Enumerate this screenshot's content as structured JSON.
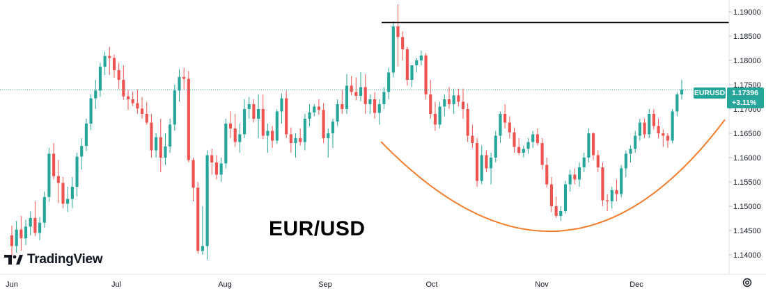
{
  "chart_data": {
    "type": "candlestick",
    "symbol": "EURUSD",
    "last_price": "1.17396",
    "change": "+3.11%",
    "watermark": "EUR/USD",
    "x_tick_labels": [
      "Jun",
      "Jul",
      "Aug",
      "Sep",
      "Oct",
      "Nov",
      "Dec"
    ],
    "y_tick_labels": [
      "1.14000",
      "1.14500",
      "1.15000",
      "1.15500",
      "1.16000",
      "1.16500",
      "1.17000",
      "1.17500",
      "1.18000",
      "1.18500",
      "1.19000"
    ],
    "ylim": [
      1.1373,
      1.1922
    ],
    "resistance_level": 1.1878,
    "colors": {
      "up": "#26a69a",
      "down": "#ef5350",
      "resistance": "#000000",
      "cup": "#f57c2a",
      "badge": "#26a69a"
    },
    "cup_curve": [
      [
        1.1633,
        0
      ],
      [
        1.1449,
        0.5
      ],
      [
        1.1678,
        1
      ]
    ],
    "candles": [
      [
        1.144,
        1.146,
        1.1398,
        1.1418
      ],
      [
        1.1418,
        1.147,
        1.1404,
        1.1452
      ],
      [
        1.1452,
        1.148,
        1.1408,
        1.1434
      ],
      [
        1.1434,
        1.1472,
        1.142,
        1.1458
      ],
      [
        1.1458,
        1.1489,
        1.144,
        1.1476
      ],
      [
        1.1476,
        1.151,
        1.1438,
        1.1445
      ],
      [
        1.1445,
        1.1478,
        1.143,
        1.1466
      ],
      [
        1.1466,
        1.153,
        1.1456,
        1.1519
      ],
      [
        1.1519,
        1.162,
        1.1509,
        1.1608
      ],
      [
        1.1608,
        1.163,
        1.1555,
        1.1562
      ],
      [
        1.1562,
        1.1595,
        1.1506,
        1.1548
      ],
      [
        1.1548,
        1.156,
        1.1496,
        1.1505
      ],
      [
        1.1505,
        1.154,
        1.1488,
        1.1515
      ],
      [
        1.1515,
        1.156,
        1.1496,
        1.154
      ],
      [
        1.154,
        1.161,
        1.152,
        1.1602
      ],
      [
        1.1602,
        1.164,
        1.1575,
        1.1624
      ],
      [
        1.1624,
        1.168,
        1.1614,
        1.167
      ],
      [
        1.167,
        1.173,
        1.1657,
        1.1722
      ],
      [
        1.1722,
        1.176,
        1.17,
        1.1738
      ],
      [
        1.1738,
        1.1795,
        1.1725,
        1.1787
      ],
      [
        1.1787,
        1.1818,
        1.177,
        1.1809
      ],
      [
        1.1809,
        1.1828,
        1.177,
        1.1805
      ],
      [
        1.1805,
        1.1812,
        1.1764,
        1.178
      ],
      [
        1.178,
        1.1795,
        1.1742,
        1.176
      ],
      [
        1.176,
        1.179,
        1.1719,
        1.1726
      ],
      [
        1.1726,
        1.174,
        1.1698,
        1.172
      ],
      [
        1.172,
        1.1736,
        1.1706,
        1.1712
      ],
      [
        1.1712,
        1.174,
        1.169,
        1.1701
      ],
      [
        1.1701,
        1.1725,
        1.168,
        1.169
      ],
      [
        1.169,
        1.1715,
        1.1668,
        1.1672
      ],
      [
        1.1672,
        1.169,
        1.16,
        1.1615
      ],
      [
        1.1615,
        1.165,
        1.16,
        1.1642
      ],
      [
        1.1642,
        1.168,
        1.157,
        1.16
      ],
      [
        1.16,
        1.165,
        1.1585,
        1.1623
      ],
      [
        1.1623,
        1.168,
        1.161,
        1.1668
      ],
      [
        1.1668,
        1.175,
        1.1655,
        1.1738
      ],
      [
        1.1738,
        1.1782,
        1.1715,
        1.1766
      ],
      [
        1.1766,
        1.1785,
        1.174,
        1.1762
      ],
      [
        1.1762,
        1.1778,
        1.159,
        1.1595
      ],
      [
        1.1595,
        1.16,
        1.151,
        1.1538
      ],
      [
        1.1538,
        1.155,
        1.1402,
        1.1408
      ],
      [
        1.1408,
        1.15,
        1.14,
        1.1418
      ],
      [
        1.1418,
        1.1615,
        1.139,
        1.1605
      ],
      [
        1.1605,
        1.1618,
        1.1565,
        1.159
      ],
      [
        1.159,
        1.1605,
        1.1555,
        1.1565
      ],
      [
        1.1565,
        1.16,
        1.155,
        1.1588
      ],
      [
        1.1588,
        1.168,
        1.1578,
        1.167
      ],
      [
        1.167,
        1.1695,
        1.164,
        1.166
      ],
      [
        1.166,
        1.169,
        1.1622,
        1.1632
      ],
      [
        1.1632,
        1.167,
        1.161,
        1.1648
      ],
      [
        1.1648,
        1.172,
        1.164,
        1.17
      ],
      [
        1.17,
        1.1725,
        1.168,
        1.171
      ],
      [
        1.171,
        1.172,
        1.1672,
        1.168
      ],
      [
        1.168,
        1.173,
        1.164,
        1.17
      ],
      [
        1.17,
        1.173,
        1.1638,
        1.1645
      ],
      [
        1.1645,
        1.167,
        1.161,
        1.1655
      ],
      [
        1.1655,
        1.1665,
        1.162,
        1.1635
      ],
      [
        1.1635,
        1.17,
        1.1628,
        1.1695
      ],
      [
        1.1695,
        1.1732,
        1.167,
        1.1722
      ],
      [
        1.1722,
        1.1738,
        1.164,
        1.1648
      ],
      [
        1.1648,
        1.1662,
        1.161,
        1.163
      ],
      [
        1.163,
        1.165,
        1.16,
        1.164
      ],
      [
        1.164,
        1.166,
        1.1625,
        1.1632
      ],
      [
        1.1632,
        1.169,
        1.1615,
        1.168
      ],
      [
        1.168,
        1.171,
        1.1665,
        1.1693
      ],
      [
        1.1693,
        1.171,
        1.1685,
        1.1705
      ],
      [
        1.1705,
        1.172,
        1.1688,
        1.1698
      ],
      [
        1.1698,
        1.1712,
        1.163,
        1.164
      ],
      [
        1.164,
        1.166,
        1.16,
        1.165
      ],
      [
        1.165,
        1.168,
        1.162,
        1.1674
      ],
      [
        1.1674,
        1.172,
        1.1665,
        1.171
      ],
      [
        1.171,
        1.174,
        1.169,
        1.17
      ],
      [
        1.17,
        1.1772,
        1.169,
        1.1748
      ],
      [
        1.1748,
        1.1768,
        1.1728,
        1.1735
      ],
      [
        1.1735,
        1.1765,
        1.1718,
        1.1727
      ],
      [
        1.1727,
        1.1776,
        1.1716,
        1.1745
      ],
      [
        1.1745,
        1.1772,
        1.169,
        1.171
      ],
      [
        1.171,
        1.173,
        1.169,
        1.172
      ],
      [
        1.172,
        1.1735,
        1.168,
        1.1692
      ],
      [
        1.1692,
        1.172,
        1.1668,
        1.171
      ],
      [
        1.171,
        1.1745,
        1.17,
        1.1735
      ],
      [
        1.1735,
        1.1785,
        1.172,
        1.1775
      ],
      [
        1.1775,
        1.188,
        1.1765,
        1.187
      ],
      [
        1.187,
        1.1915,
        1.1788,
        1.1848
      ],
      [
        1.1848,
        1.186,
        1.18,
        1.1823
      ],
      [
        1.1823,
        1.1828,
        1.1748,
        1.176
      ],
      [
        1.176,
        1.179,
        1.1745,
        1.179
      ],
      [
        1.179,
        1.1805,
        1.1775,
        1.18
      ],
      [
        1.18,
        1.182,
        1.179,
        1.181
      ],
      [
        1.181,
        1.1815,
        1.172,
        1.173
      ],
      [
        1.173,
        1.176,
        1.168,
        1.169
      ],
      [
        1.169,
        1.1715,
        1.1655,
        1.1668
      ],
      [
        1.1668,
        1.1715,
        1.166,
        1.1705
      ],
      [
        1.1705,
        1.173,
        1.1685,
        1.172
      ],
      [
        1.172,
        1.1745,
        1.17,
        1.171
      ],
      [
        1.171,
        1.1742,
        1.169,
        1.1728
      ],
      [
        1.1728,
        1.1742,
        1.1705,
        1.1715
      ],
      [
        1.1715,
        1.1742,
        1.168,
        1.17
      ],
      [
        1.17,
        1.1712,
        1.1632,
        1.1645
      ],
      [
        1.1645,
        1.1668,
        1.162,
        1.163
      ],
      [
        1.163,
        1.164,
        1.154,
        1.1552
      ],
      [
        1.1552,
        1.1625,
        1.1545,
        1.1605
      ],
      [
        1.1605,
        1.1615,
        1.157,
        1.1578
      ],
      [
        1.1578,
        1.161,
        1.1545,
        1.16
      ],
      [
        1.16,
        1.1655,
        1.159,
        1.1645
      ],
      [
        1.1645,
        1.1695,
        1.163,
        1.169
      ],
      [
        1.169,
        1.171,
        1.166,
        1.1672
      ],
      [
        1.1672,
        1.1685,
        1.164,
        1.1652
      ],
      [
        1.1652,
        1.1662,
        1.161,
        1.1622
      ],
      [
        1.1622,
        1.164,
        1.1605,
        1.161
      ],
      [
        1.161,
        1.1625,
        1.16,
        1.1618
      ],
      [
        1.1618,
        1.164,
        1.1608,
        1.1632
      ],
      [
        1.1632,
        1.1655,
        1.162,
        1.1648
      ],
      [
        1.1648,
        1.166,
        1.1625,
        1.163
      ],
      [
        1.163,
        1.164,
        1.1575,
        1.1585
      ],
      [
        1.1585,
        1.16,
        1.1538,
        1.1545
      ],
      [
        1.1545,
        1.156,
        1.1488,
        1.15
      ],
      [
        1.15,
        1.152,
        1.1476,
        1.148
      ],
      [
        1.148,
        1.15,
        1.147,
        1.149
      ],
      [
        1.149,
        1.1552,
        1.1485,
        1.1545
      ],
      [
        1.1545,
        1.1575,
        1.153,
        1.1565
      ],
      [
        1.1565,
        1.1578,
        1.1545,
        1.1555
      ],
      [
        1.1555,
        1.159,
        1.154,
        1.158
      ],
      [
        1.158,
        1.161,
        1.157,
        1.16
      ],
      [
        1.16,
        1.166,
        1.159,
        1.165
      ],
      [
        1.165,
        1.1652,
        1.1595,
        1.1605
      ],
      [
        1.1605,
        1.1615,
        1.157,
        1.158
      ],
      [
        1.158,
        1.159,
        1.15,
        1.1512
      ],
      [
        1.1512,
        1.1525,
        1.149,
        1.151
      ],
      [
        1.151,
        1.154,
        1.1495,
        1.1533
      ],
      [
        1.1533,
        1.1555,
        1.151,
        1.1525
      ],
      [
        1.1525,
        1.1585,
        1.1518,
        1.1578
      ],
      [
        1.1578,
        1.1615,
        1.156,
        1.1608
      ],
      [
        1.1608,
        1.1625,
        1.159,
        1.1618
      ],
      [
        1.1618,
        1.1655,
        1.161,
        1.1645
      ],
      [
        1.1645,
        1.168,
        1.1635,
        1.1672
      ],
      [
        1.1672,
        1.168,
        1.164,
        1.1648
      ],
      [
        1.1648,
        1.17,
        1.164,
        1.169
      ],
      [
        1.169,
        1.17,
        1.1658,
        1.1665
      ],
      [
        1.1665,
        1.168,
        1.164,
        1.165
      ],
      [
        1.165,
        1.1658,
        1.1622,
        1.1645
      ],
      [
        1.1645,
        1.165,
        1.162,
        1.1635
      ],
      [
        1.1635,
        1.17,
        1.163,
        1.1695
      ],
      [
        1.1695,
        1.1735,
        1.1685,
        1.173
      ],
      [
        1.173,
        1.176,
        1.172,
        1.174
      ]
    ]
  }
}
